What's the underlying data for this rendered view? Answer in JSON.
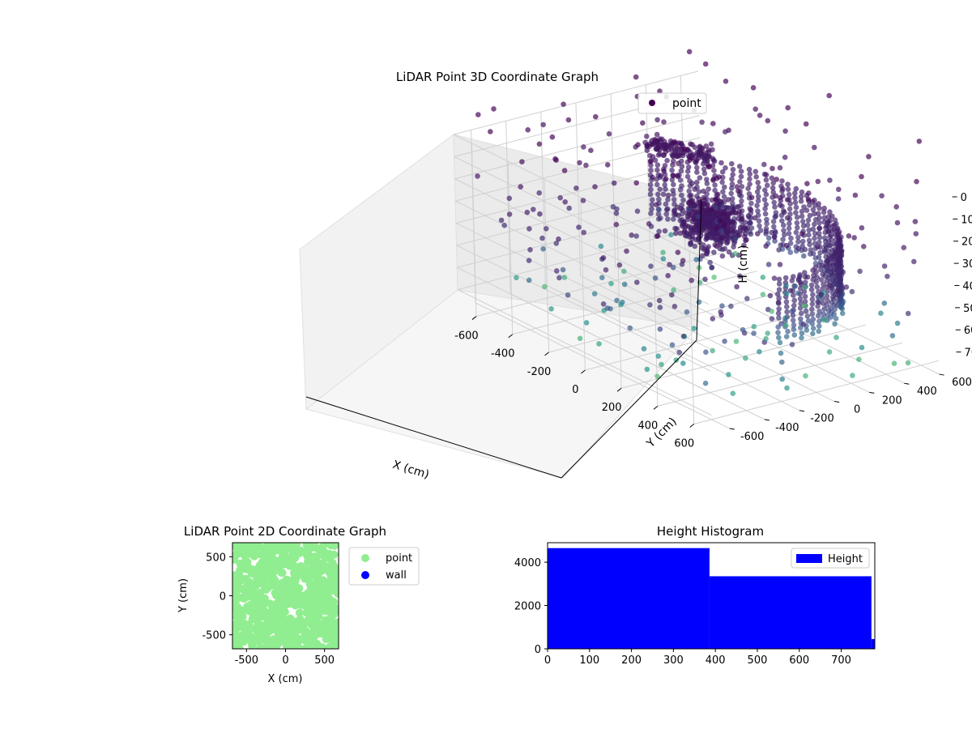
{
  "chart_data": [
    {
      "type": "scatter",
      "title": "LiDAR Point 3D Coordinate Graph",
      "xlabel": "X (cm)",
      "ylabel": "Y (cm)",
      "zlabel": "H (cm)",
      "xlim": [
        -700,
        700
      ],
      "ylim": [
        -700,
        700
      ],
      "zlim": [
        0,
        780
      ],
      "z_inverted": true,
      "xticks": [
        -600,
        -400,
        -200,
        0,
        200,
        400,
        600
      ],
      "yticks": [
        -600,
        -400,
        -200,
        0,
        200,
        400,
        600
      ],
      "zticks": [
        0,
        100,
        200,
        300,
        400,
        500,
        600,
        700
      ],
      "grid": true,
      "colormap": "viridis",
      "legend": {
        "position": "top-right",
        "entries": [
          "point"
        ]
      }
    },
    {
      "type": "scatter",
      "title": "LiDAR Point 2D Coordinate Graph",
      "xlabel": "X (cm)",
      "ylabel": "Y (cm)",
      "xlim": [
        -680,
        680
      ],
      "ylim": [
        -680,
        680
      ],
      "xticks": [
        -500,
        0,
        500
      ],
      "yticks": [
        -500,
        0,
        500
      ],
      "series": [
        {
          "name": "point",
          "color": "#90ee90"
        },
        {
          "name": "wall",
          "color": "#0000ff"
        }
      ],
      "legend": {
        "position": "outside-right",
        "entries": [
          "point",
          "wall"
        ]
      }
    },
    {
      "type": "bar",
      "title": "Height Histogram",
      "xlim": [
        0,
        780
      ],
      "ylim": [
        0,
        4900
      ],
      "xticks": [
        0,
        100,
        200,
        300,
        400,
        500,
        600,
        700
      ],
      "yticks": [
        0,
        2000,
        4000
      ],
      "bins": [
        {
          "start": 0,
          "end": 386,
          "value": 4650
        },
        {
          "start": 386,
          "end": 772,
          "value": 3350
        },
        {
          "start": 772,
          "end": 780,
          "value": 450
        }
      ],
      "color": "#0000ff",
      "legend": {
        "position": "top-right",
        "entries": [
          "Height"
        ]
      }
    }
  ]
}
